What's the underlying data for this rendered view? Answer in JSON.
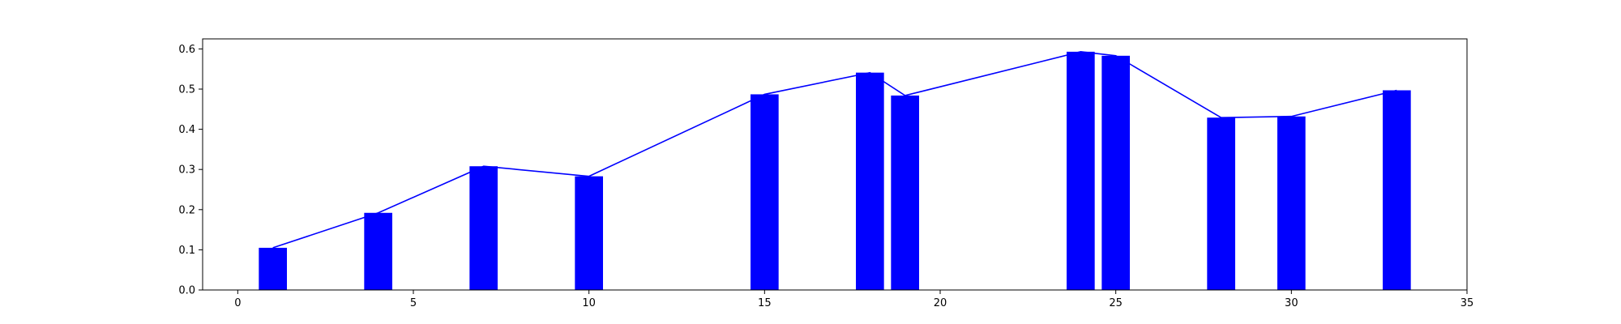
{
  "chart_data": {
    "type": "bar",
    "title": "",
    "xlabel": "",
    "ylabel": "",
    "xlim": [
      -1,
      35
    ],
    "ylim": [
      0,
      0.625
    ],
    "x_ticks": [
      0,
      5,
      10,
      15,
      20,
      25,
      30,
      35
    ],
    "y_ticks": [
      0.0,
      0.1,
      0.2,
      0.3,
      0.4,
      0.5,
      0.6
    ],
    "x_tick_labels": [
      "0",
      "5",
      "10",
      "15",
      "20",
      "25",
      "30",
      "35"
    ],
    "y_tick_labels": [
      "0.0",
      "0.1",
      "0.2",
      "0.3",
      "0.4",
      "0.5",
      "0.6"
    ],
    "bar_width": 0.8,
    "grid": false,
    "series": [
      {
        "kind": "bar",
        "color": "#0000ff",
        "x": [
          1,
          4,
          7,
          10,
          15,
          18,
          19,
          24,
          25,
          28,
          30,
          33
        ],
        "y": [
          0.105,
          0.192,
          0.308,
          0.283,
          0.487,
          0.541,
          0.484,
          0.593,
          0.583,
          0.429,
          0.432,
          0.497
        ]
      },
      {
        "kind": "line",
        "color": "#0000ff",
        "x": [
          1,
          4,
          7,
          10,
          15,
          18,
          19,
          24,
          25,
          28,
          30,
          33
        ],
        "y": [
          0.105,
          0.192,
          0.308,
          0.283,
          0.487,
          0.541,
          0.484,
          0.593,
          0.583,
          0.429,
          0.432,
          0.497
        ]
      }
    ]
  }
}
